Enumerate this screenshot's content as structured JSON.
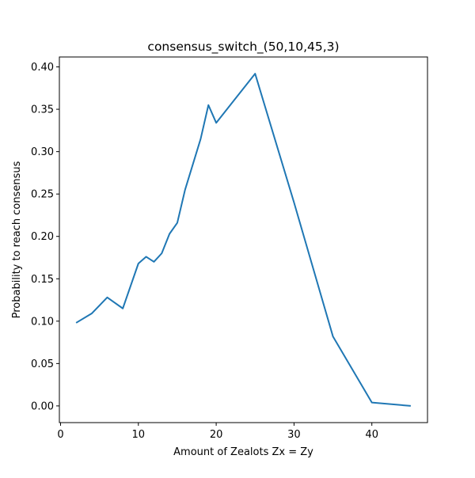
{
  "chart_data": {
    "type": "line",
    "title": "consensus_switch_(50,10,45,3)",
    "xlabel": "Amount of Zealots Zx = Zy",
    "ylabel": "Probability to reach consensus",
    "xlim": [
      -0.15,
      47.15
    ],
    "ylim": [
      -0.0197,
      0.4117
    ],
    "x_ticks": [
      0,
      10,
      20,
      30,
      40
    ],
    "x_tick_labels": [
      "0",
      "10",
      "20",
      "30",
      "40"
    ],
    "y_ticks": [
      0.0,
      0.05,
      0.1,
      0.15,
      0.2,
      0.25,
      0.3,
      0.35,
      0.4
    ],
    "y_tick_labels": [
      "0.00",
      "0.05",
      "0.10",
      "0.15",
      "0.20",
      "0.25",
      "0.30",
      "0.35",
      "0.40"
    ],
    "grid": false,
    "series": [
      {
        "color": "#1f77b4",
        "x": [
          2,
          4,
          6,
          8,
          10,
          11,
          12,
          13,
          14,
          15,
          16,
          18,
          19,
          20,
          25,
          30,
          35,
          40,
          45
        ],
        "y": [
          0.098,
          0.109,
          0.128,
          0.115,
          0.168,
          0.176,
          0.17,
          0.18,
          0.203,
          0.216,
          0.255,
          0.315,
          0.355,
          0.334,
          0.392,
          0.24,
          0.082,
          0.004,
          0.0
        ]
      }
    ]
  }
}
